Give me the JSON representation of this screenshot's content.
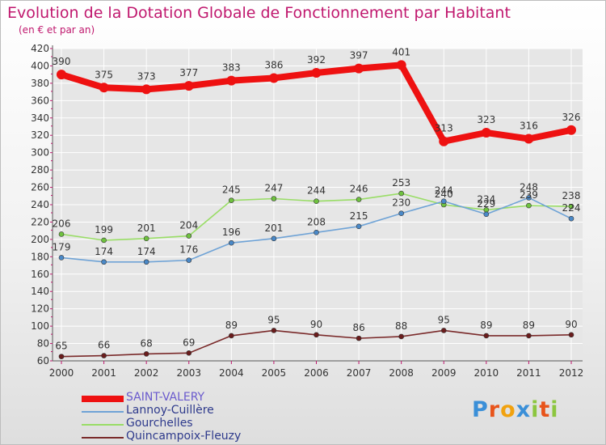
{
  "title": "Evolution de la Dotation Globale de Fonctionnement par Habitant",
  "subtitle": "(en € et par an)",
  "colors": {
    "title": "#c0186e",
    "axis": "#555555",
    "tick_marks": "#c0186e",
    "grid": "#ffffff"
  },
  "chart_data": {
    "type": "line",
    "x": [
      "2000",
      "2001",
      "2002",
      "2003",
      "2004",
      "2005",
      "2006",
      "2007",
      "2008",
      "2009",
      "2010",
      "2011",
      "2012"
    ],
    "ylim": [
      60,
      420
    ],
    "yticks": [
      60,
      80,
      100,
      120,
      140,
      160,
      180,
      200,
      220,
      240,
      260,
      280,
      300,
      320,
      340,
      360,
      380,
      400,
      420
    ],
    "grid": true,
    "legend_position": "bottom-left",
    "series": [
      {
        "name": "SAINT-VALERY",
        "color": "#ee1111",
        "labelcolor": "#333333",
        "thick": true,
        "values": [
          390,
          375,
          373,
          377,
          383,
          386,
          392,
          397,
          401,
          313,
          323,
          316,
          326
        ]
      },
      {
        "name": "Lannoy-Cuillère",
        "color": "#6fa3d6",
        "marker": "#4a89c8",
        "values": [
          179,
          174,
          174,
          176,
          196,
          201,
          208,
          215,
          230,
          244,
          229,
          248,
          224
        ]
      },
      {
        "name": "Gourchelles",
        "color": "#99dd66",
        "marker": "#6fc23f",
        "values": [
          206,
          199,
          201,
          204,
          245,
          247,
          244,
          246,
          253,
          240,
          234,
          239,
          238
        ]
      },
      {
        "name": "Quincampoix-Fleuzy",
        "color": "#7a2a2a",
        "marker": "#6a1c1c",
        "values": [
          65,
          66,
          68,
          69,
          89,
          95,
          90,
          86,
          88,
          95,
          89,
          89,
          90
        ]
      }
    ]
  },
  "logo": {
    "text": "Proxiti",
    "letters": [
      "P",
      "r",
      "o",
      "x",
      "i",
      "t",
      "i"
    ],
    "colors": [
      "#3a8fd8",
      "#e8541b",
      "#f1a20f",
      "#3a8fd8",
      "#8cc63f",
      "#e8541b",
      "#8cc63f"
    ]
  }
}
